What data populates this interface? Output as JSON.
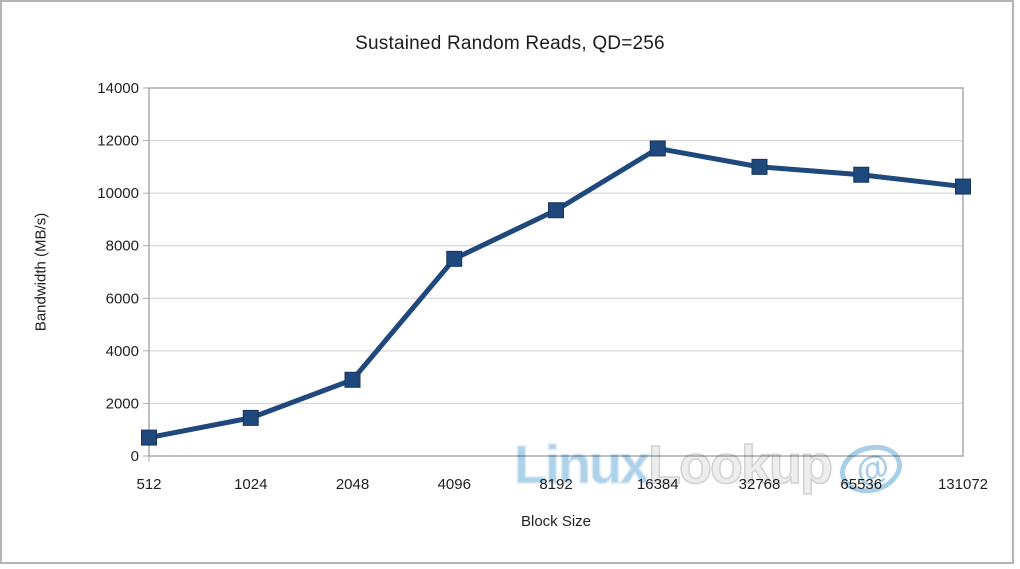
{
  "chart_data": {
    "type": "line",
    "title": "Sustained Random Reads, QD=256",
    "xlabel": "Block Size",
    "ylabel": "Bandwidth (MB/s)",
    "categories": [
      "512",
      "1024",
      "2048",
      "4096",
      "8192",
      "16384",
      "32768",
      "65536",
      "131072"
    ],
    "series": [
      {
        "name": "Bandwidth",
        "values": [
          700,
          1450,
          2900,
          7500,
          9350,
          11700,
          11000,
          10700,
          10250
        ]
      }
    ],
    "ylim": [
      0,
      14000
    ],
    "ytick_step": 2000,
    "grid": "horizontal",
    "legend": "none",
    "series_color": "#1F497D",
    "marker": "square"
  },
  "watermark": {
    "part1": "Linux",
    "part2": "Lookup",
    "logo_glyph": "@",
    "color_part1": "#aed2ea",
    "color_part2": "#ededed",
    "logo_color": "#a9cfe8"
  },
  "colors": {
    "background": "#ffffff",
    "frame_border": "#b4b4b4",
    "plot_border": "#ababab",
    "gridline": "#cdcdcd",
    "text": "#1f1f1f",
    "line": "#1F497D",
    "marker_edge": "#16365C"
  }
}
